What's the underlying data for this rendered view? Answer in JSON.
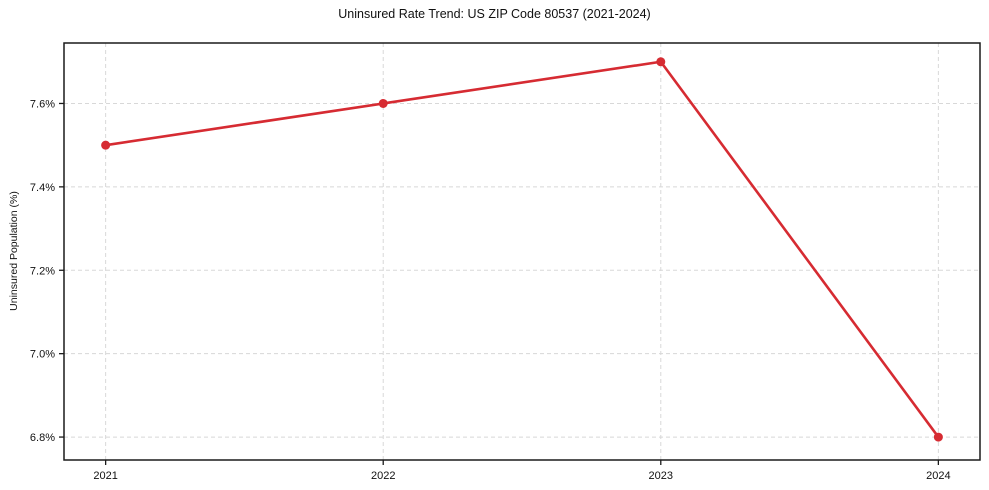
{
  "chart_data": {
    "type": "line",
    "title": "Uninsured Rate Trend: US ZIP Code 80537 (2021-2024)",
    "xlabel": "",
    "ylabel": "Uninsured Population (%)",
    "x": [
      2021,
      2022,
      2023,
      2024
    ],
    "xtick_labels": [
      "2021",
      "2022",
      "2023",
      "2024"
    ],
    "series": [
      {
        "name": "Uninsured Rate",
        "values": [
          7.5,
          7.6,
          7.7,
          6.8
        ]
      }
    ],
    "yticks": [
      6.8,
      7.0,
      7.2,
      7.4,
      7.6
    ],
    "ytick_labels": [
      "6.8%",
      "7.0%",
      "7.2%",
      "7.4%",
      "7.6%"
    ],
    "xlim": [
      2020.85,
      2024.15
    ],
    "ylim": [
      6.745,
      7.745
    ],
    "grid": true,
    "legend": "none",
    "colors": {
      "line": "#d62b32",
      "marker": "#d62b32",
      "grid": "#d8d8d8",
      "axis": "#1a1a1a",
      "text": "#111111",
      "background": "#ffffff"
    }
  }
}
